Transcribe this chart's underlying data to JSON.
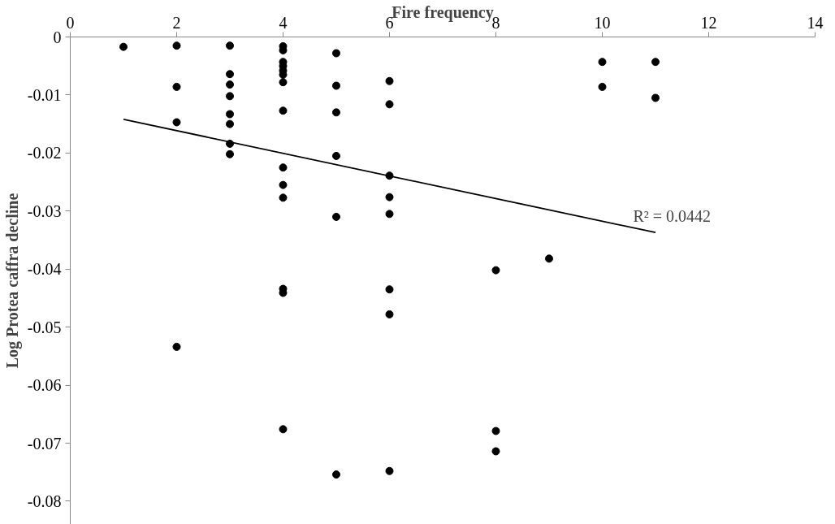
{
  "chart_data": {
    "type": "scatter",
    "xlabel": "Fire frequency",
    "ylabel": "Log Protea caffra decline",
    "xlim": [
      0,
      14
    ],
    "ylim": [
      -0.084,
      0
    ],
    "xticks": [
      0,
      2,
      4,
      6,
      8,
      10,
      12,
      14
    ],
    "yticks": [
      0,
      -0.01,
      -0.02,
      -0.03,
      -0.04,
      -0.05,
      -0.06,
      -0.07,
      -0.08
    ],
    "grid": false,
    "marker": "circle",
    "series": [
      {
        "color": "#000000",
        "x": [
          1,
          2,
          2,
          2,
          2,
          3,
          3,
          3,
          3,
          3,
          3,
          3,
          3,
          4,
          4,
          4,
          4,
          4,
          4,
          4,
          4,
          4,
          4,
          4,
          4,
          4,
          4,
          5,
          5,
          5,
          5,
          5,
          5,
          6,
          6,
          6,
          6,
          6,
          6,
          6,
          6,
          8,
          8,
          8,
          9,
          10,
          10,
          11,
          11
        ],
        "values": [
          -0.0017,
          -0.0015,
          -0.0086,
          -0.0147,
          -0.0534,
          -0.0015,
          -0.0064,
          -0.0082,
          -0.0102,
          -0.0133,
          -0.015,
          -0.0184,
          -0.0202,
          -0.0016,
          -0.0023,
          -0.0043,
          -0.005,
          -0.0058,
          -0.0065,
          -0.0078,
          -0.0127,
          -0.0225,
          -0.0255,
          -0.0277,
          -0.0434,
          -0.0441,
          -0.0676,
          -0.0028,
          -0.0084,
          -0.013,
          -0.0205,
          -0.031,
          -0.0754,
          -0.0076,
          -0.0116,
          -0.0239,
          -0.0276,
          -0.0305,
          -0.0435,
          -0.0478,
          -0.0748,
          -0.0402,
          -0.0679,
          -0.0714,
          -0.0382,
          -0.0043,
          -0.0086,
          -0.0043,
          -0.0105
        ]
      },
      {
        "type": "line",
        "color": "#000000",
        "marker": "none",
        "line_style": "solid",
        "x": [
          1,
          11
        ],
        "values": [
          -0.0142,
          -0.0337
        ]
      }
    ],
    "annotations": [
      "R² = 0.0442"
    ]
  }
}
